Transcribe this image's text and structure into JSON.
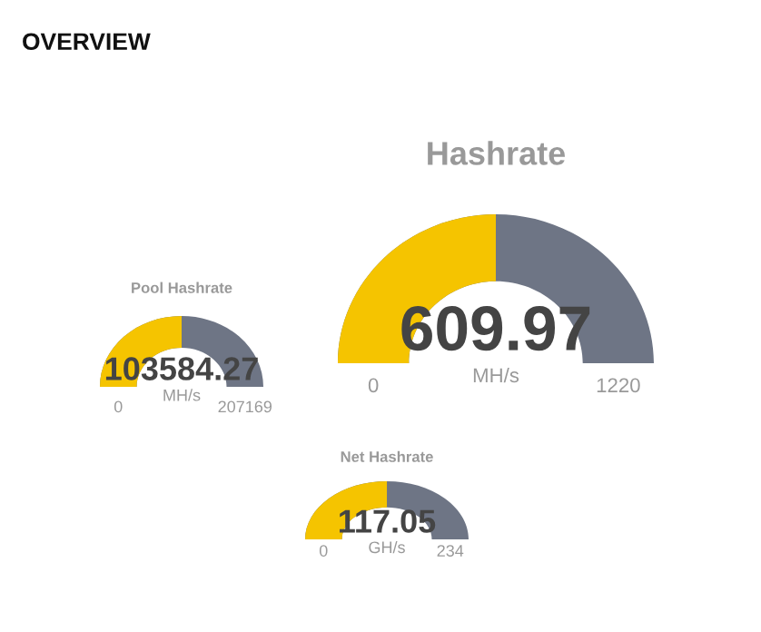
{
  "chart_data": [
    {
      "type": "other",
      "title": "OVERVIEW"
    },
    {
      "type": "other",
      "title": "Pool Hashrate",
      "series": [
        {
          "values": [
            103584.27
          ],
          "color": "#f5c400"
        }
      ],
      "color": "#6e7585",
      "xlabel": "MH/s",
      "annotations": [
        "0",
        "207169"
      ],
      "data_labels": true
    },
    {
      "type": "other",
      "title": "Hashrate",
      "series": [
        {
          "values": [
            609.97
          ],
          "color": "#f5c400"
        }
      ],
      "color": "#6e7585",
      "xlabel": "MH/s",
      "annotations": [
        "0",
        "1220"
      ],
      "data_labels": true
    },
    {
      "type": "other",
      "title": "Net Hashrate",
      "series": [
        {
          "values": [
            117.05
          ],
          "color": "#f5c400"
        }
      ],
      "color": "#6e7585",
      "xlabel": "GH/s",
      "annotations": [
        "0",
        "234"
      ],
      "data_labels": true
    }
  ]
}
